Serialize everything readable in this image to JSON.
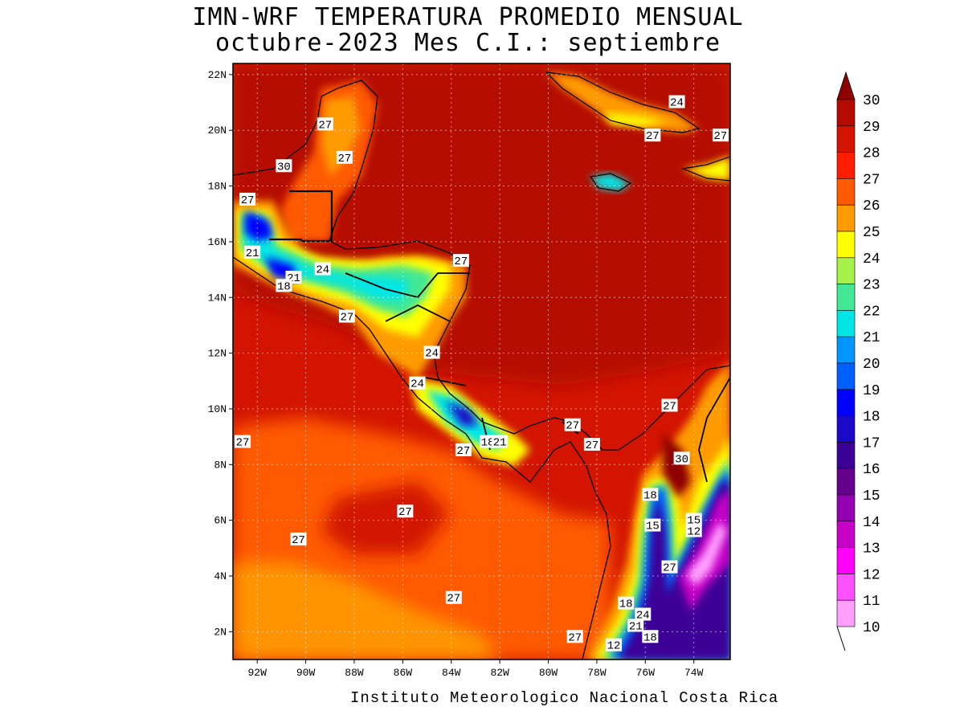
{
  "title_line1": "IMN-WRF  TEMPERATURA PROMEDIO MENSUAL",
  "title_line2": "octubre-2023 Mes C.I.: septiembre",
  "footer": "Instituto Meteorologico Nacional Costa Rica",
  "map": {
    "lat_ticks": [
      "22N",
      "20N",
      "18N",
      "16N",
      "14N",
      "12N",
      "10N",
      "8N",
      "6N",
      "4N",
      "2N"
    ],
    "lon_ticks": [
      "92W",
      "90W",
      "88W",
      "86W",
      "84W",
      "82W",
      "80W",
      "78W",
      "76W",
      "74W"
    ],
    "contour_labels": [
      {
        "text": "27",
        "lon": -89.2,
        "lat": 20.2
      },
      {
        "text": "30",
        "lon": -90.9,
        "lat": 18.7
      },
      {
        "text": "27",
        "lon": -88.4,
        "lat": 19.0
      },
      {
        "text": "27",
        "lon": -92.4,
        "lat": 17.5
      },
      {
        "text": "21",
        "lon": -92.2,
        "lat": 15.6
      },
      {
        "text": "21",
        "lon": -90.5,
        "lat": 14.7
      },
      {
        "text": "18",
        "lon": -90.9,
        "lat": 14.4
      },
      {
        "text": "24",
        "lon": -89.3,
        "lat": 15.0
      },
      {
        "text": "27",
        "lon": -83.6,
        "lat": 15.3
      },
      {
        "text": "27",
        "lon": -88.3,
        "lat": 13.3
      },
      {
        "text": "24",
        "lon": -84.8,
        "lat": 12.0
      },
      {
        "text": "24",
        "lon": -85.4,
        "lat": 10.9
      },
      {
        "text": "27",
        "lon": -83.5,
        "lat": 8.5
      },
      {
        "text": "18",
        "lon": -82.5,
        "lat": 8.8
      },
      {
        "text": "21",
        "lon": -82.0,
        "lat": 8.8
      },
      {
        "text": "27",
        "lon": -79.0,
        "lat": 9.4
      },
      {
        "text": "27",
        "lon": -78.2,
        "lat": 8.7
      },
      {
        "text": "27",
        "lon": -75.0,
        "lat": 10.1
      },
      {
        "text": "30",
        "lon": -74.5,
        "lat": 8.2
      },
      {
        "text": "24",
        "lon": -74.7,
        "lat": 21.0
      },
      {
        "text": "27",
        "lon": -75.7,
        "lat": 19.8
      },
      {
        "text": "27",
        "lon": -72.9,
        "lat": 19.8
      },
      {
        "text": "18",
        "lon": -75.8,
        "lat": 6.9
      },
      {
        "text": "15",
        "lon": -75.7,
        "lat": 5.8
      },
      {
        "text": "15",
        "lon": -74.0,
        "lat": 6.0
      },
      {
        "text": "12",
        "lon": -74.0,
        "lat": 5.6
      },
      {
        "text": "27",
        "lon": -75.0,
        "lat": 4.3
      },
      {
        "text": "18",
        "lon": -76.8,
        "lat": 3.0
      },
      {
        "text": "24",
        "lon": -76.1,
        "lat": 2.6
      },
      {
        "text": "21",
        "lon": -76.4,
        "lat": 2.2
      },
      {
        "text": "18",
        "lon": -75.8,
        "lat": 1.8
      },
      {
        "text": "12",
        "lon": -77.3,
        "lat": 1.5
      },
      {
        "text": "27",
        "lon": -78.9,
        "lat": 1.8
      },
      {
        "text": "27",
        "lon": -92.6,
        "lat": 8.8
      },
      {
        "text": "27",
        "lon": -85.9,
        "lat": 6.3
      },
      {
        "text": "27",
        "lon": -90.3,
        "lat": 5.3
      },
      {
        "text": "27",
        "lon": -83.9,
        "lat": 3.2
      }
    ]
  },
  "colorbar": {
    "labels": [
      "30",
      "29",
      "28",
      "27",
      "26",
      "25",
      "24",
      "23",
      "22",
      "21",
      "20",
      "19",
      "18",
      "17",
      "16",
      "15",
      "14",
      "13",
      "12",
      "11",
      "10"
    ],
    "colors": [
      "#8e0000",
      "#b50a00",
      "#d21400",
      "#ff1e00",
      "#ff5a00",
      "#ff9b00",
      "#ffff00",
      "#a6f04a",
      "#43e794",
      "#00e6e6",
      "#0096ff",
      "#0060ff",
      "#0000ff",
      "#1a0ac8",
      "#3c0096",
      "#64008c",
      "#9600b4",
      "#c800c8",
      "#ff00ff",
      "#ff50ff",
      "#ffa0ff"
    ]
  }
}
